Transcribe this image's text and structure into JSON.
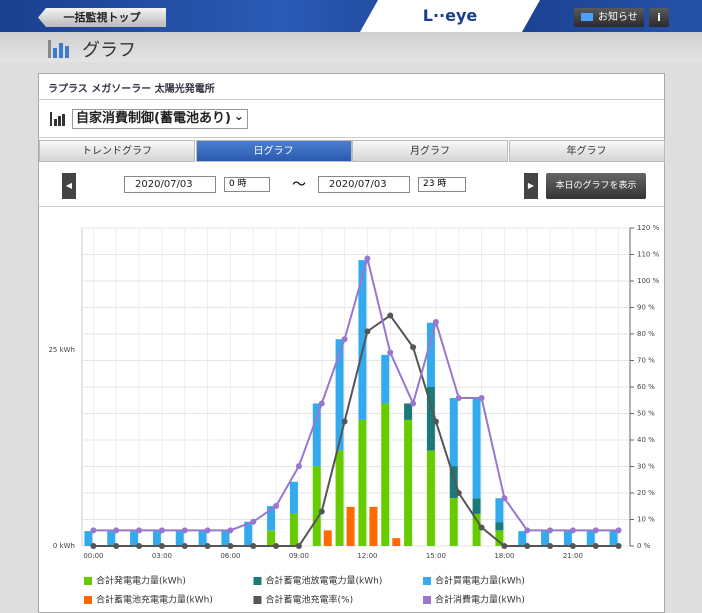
{
  "header": {
    "back_button": "一括監視トップ",
    "logo": "L··eye",
    "notice_button": "お知らせ",
    "info_button": "i"
  },
  "page_title": "グラフ",
  "site_name": "ラプラス メガソーラー 太陽光発電所",
  "control_select": "自家消費制御(蓄電池あり)",
  "tabs": [
    "トレンドグラフ",
    "日グラフ",
    "月グラフ",
    "年グラフ"
  ],
  "active_tab": 1,
  "date_range": {
    "start_date": "2020/07/03",
    "start_hour": "0 時",
    "separator": "〜",
    "end_date": "2020/07/03",
    "end_hour": "23 時",
    "today_button": "本日のグラフを表示"
  },
  "chart_data": {
    "type": "bar",
    "categories": [
      "00:00",
      null,
      null,
      "03:00",
      null,
      null,
      "06:00",
      null,
      null,
      "09:00",
      null,
      null,
      "12:00",
      null,
      null,
      "15:00",
      null,
      null,
      "18:00",
      null,
      null,
      "21:00",
      null,
      null
    ],
    "series": [
      {
        "name": "合計発電電力量(kWh)",
        "color": "#66cc00",
        "type": "bar",
        "stacked": true,
        "values": [
          0,
          0,
          0,
          0,
          0,
          0,
          0,
          0,
          2.0,
          4.1,
          10.2,
          12.2,
          16.1,
          18.2,
          16.1,
          12.2,
          6.1,
          4.1,
          2.0,
          0,
          0,
          0,
          0,
          0
        ]
      },
      {
        "name": "合計蓄電池放電電力量(kWh)",
        "color": "#1a7a7a",
        "type": "bar",
        "stacked": true,
        "values": [
          0,
          0,
          0,
          0,
          0,
          0,
          0,
          0,
          0,
          0,
          0,
          0,
          0,
          0,
          2.1,
          8.1,
          4.1,
          2.0,
          1.0,
          0,
          0,
          0,
          0,
          0
        ]
      },
      {
        "name": "合計買電電力量(kWh)",
        "color": "#33aaee",
        "type": "bar",
        "stacked": true,
        "values": [
          1.9,
          1.9,
          1.9,
          1.9,
          1.9,
          1.9,
          1.9,
          3.1,
          3.1,
          4.1,
          8.0,
          14.2,
          20.4,
          6.2,
          0,
          8.2,
          8.7,
          12.8,
          3.1,
          1.9,
          1.9,
          1.9,
          1.9,
          1.9
        ]
      },
      {
        "name": "合計蓄電池充電電力量(kWh)",
        "color": "#ff6a00",
        "type": "bar",
        "stacked": false,
        "values": [
          0,
          0,
          0,
          0,
          0,
          0,
          0,
          0,
          0,
          0,
          2.0,
          5.0,
          5.0,
          1.0,
          0,
          0,
          0,
          0,
          0,
          0,
          0,
          0,
          0,
          0
        ]
      },
      {
        "name": "合計蓄電池充電率(%)",
        "color": "#555555",
        "type": "line",
        "axis": "y2",
        "values": [
          0,
          0,
          0,
          0,
          0,
          0,
          0,
          0,
          0,
          0,
          13,
          47,
          81,
          87,
          75,
          47,
          20,
          7,
          0,
          0,
          0,
          0,
          0,
          0
        ]
      },
      {
        "name": "合計消費電力量(kWh)",
        "color": "#9977cc",
        "type": "line",
        "values": [
          2.0,
          2.0,
          2.0,
          2.0,
          2.0,
          2.0,
          2.0,
          3.1,
          5.1,
          10.2,
          18.2,
          26.4,
          36.7,
          24.7,
          18.2,
          28.6,
          18.9,
          18.9,
          6.1,
          2.0,
          2.0,
          2.0,
          2.0,
          2.0
        ]
      }
    ],
    "ylim": [
      0,
      40.6
    ],
    "yticks": [
      {
        "value": 0,
        "label": "0 kWh"
      },
      {
        "value": 25,
        "label": "25 kWh"
      }
    ],
    "y2lim": [
      0,
      120
    ],
    "y2ticks": [
      {
        "value": 0,
        "label": "0 %"
      },
      {
        "value": 10,
        "label": "10 %"
      },
      {
        "value": 20,
        "label": "20 %"
      },
      {
        "value": 30,
        "label": "30 %"
      },
      {
        "value": 40,
        "label": "40 %"
      },
      {
        "value": 50,
        "label": "50 %"
      },
      {
        "value": 60,
        "label": "60 %"
      },
      {
        "value": 70,
        "label": "70 %"
      },
      {
        "value": 80,
        "label": "80 %"
      },
      {
        "value": 90,
        "label": "90 %"
      },
      {
        "value": 100,
        "label": "100 %"
      },
      {
        "value": 110,
        "label": "110 %"
      },
      {
        "value": 120,
        "label": "120 %"
      }
    ],
    "grid": true,
    "legend": "bottom"
  }
}
